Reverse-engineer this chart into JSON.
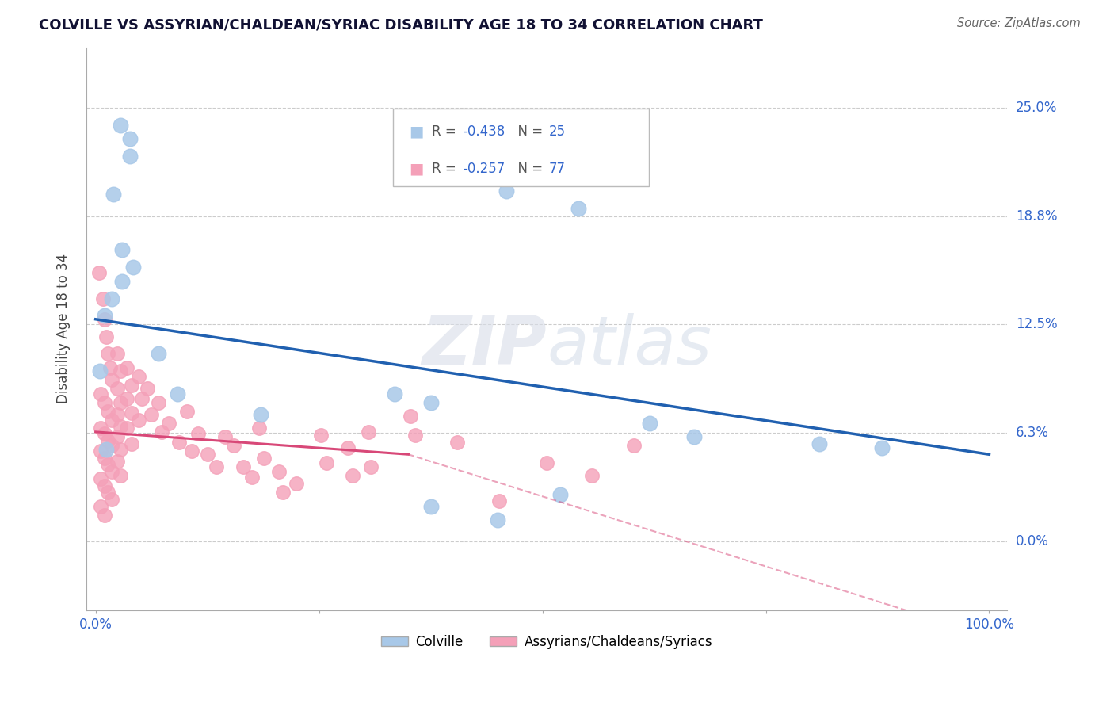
{
  "title": "COLVILLE VS ASSYRIAN/CHALDEAN/SYRIAC DISABILITY AGE 18 TO 34 CORRELATION CHART",
  "source": "Source: ZipAtlas.com",
  "ylabel": "Disability Age 18 to 34",
  "xlim": [
    -0.01,
    1.02
  ],
  "ylim": [
    -0.04,
    0.285
  ],
  "ytick_vals": [
    0.0,
    0.0625,
    0.125,
    0.1875,
    0.25
  ],
  "ytick_labels": [
    "0.0%",
    "6.3%",
    "12.5%",
    "18.8%",
    "25.0%"
  ],
  "xtick_vals": [
    0.0,
    0.25,
    0.5,
    0.75,
    1.0
  ],
  "xtick_labels": [
    "0.0%",
    "",
    "",
    "",
    "100.0%"
  ],
  "blue_R": -0.438,
  "blue_N": 25,
  "pink_R": -0.257,
  "pink_N": 77,
  "legend_label_blue": "Colville",
  "legend_label_pink": "Assyrians/Chaldeans/Syriacs",
  "blue_fill": "#a8c8e8",
  "pink_fill": "#f4a0b8",
  "blue_line": "#2060b0",
  "pink_line": "#d84878",
  "grid_color": "#cccccc",
  "label_color": "#3366cc",
  "watermark_text": "ZIPatlas",
  "blue_line_pts": [
    [
      0.0,
      0.128
    ],
    [
      1.0,
      0.05
    ]
  ],
  "pink_line_solid": [
    [
      0.0,
      0.063
    ],
    [
      0.35,
      0.05
    ]
  ],
  "pink_line_dash": [
    [
      0.35,
      0.05
    ],
    [
      1.0,
      -0.055
    ]
  ],
  "blue_pts": [
    [
      0.028,
      0.24
    ],
    [
      0.038,
      0.232
    ],
    [
      0.038,
      0.222
    ],
    [
      0.02,
      0.2
    ],
    [
      0.03,
      0.168
    ],
    [
      0.042,
      0.158
    ],
    [
      0.03,
      0.15
    ],
    [
      0.018,
      0.14
    ],
    [
      0.01,
      0.13
    ],
    [
      0.46,
      0.202
    ],
    [
      0.54,
      0.192
    ],
    [
      0.07,
      0.108
    ],
    [
      0.005,
      0.098
    ],
    [
      0.092,
      0.085
    ],
    [
      0.185,
      0.073
    ],
    [
      0.335,
      0.085
    ],
    [
      0.375,
      0.08
    ],
    [
      0.62,
      0.068
    ],
    [
      0.67,
      0.06
    ],
    [
      0.81,
      0.056
    ],
    [
      0.88,
      0.054
    ],
    [
      0.012,
      0.053
    ],
    [
      0.375,
      0.02
    ],
    [
      0.52,
      0.027
    ],
    [
      0.45,
      0.012
    ]
  ],
  "pink_pts": [
    [
      0.004,
      0.155
    ],
    [
      0.008,
      0.14
    ],
    [
      0.01,
      0.128
    ],
    [
      0.012,
      0.118
    ],
    [
      0.014,
      0.108
    ],
    [
      0.016,
      0.1
    ],
    [
      0.018,
      0.093
    ],
    [
      0.006,
      0.085
    ],
    [
      0.01,
      0.08
    ],
    [
      0.014,
      0.075
    ],
    [
      0.018,
      0.07
    ],
    [
      0.006,
      0.065
    ],
    [
      0.01,
      0.062
    ],
    [
      0.014,
      0.058
    ],
    [
      0.018,
      0.055
    ],
    [
      0.006,
      0.052
    ],
    [
      0.01,
      0.048
    ],
    [
      0.014,
      0.044
    ],
    [
      0.018,
      0.04
    ],
    [
      0.006,
      0.036
    ],
    [
      0.01,
      0.032
    ],
    [
      0.014,
      0.028
    ],
    [
      0.018,
      0.024
    ],
    [
      0.006,
      0.02
    ],
    [
      0.01,
      0.015
    ],
    [
      0.024,
      0.108
    ],
    [
      0.028,
      0.098
    ],
    [
      0.024,
      0.088
    ],
    [
      0.028,
      0.08
    ],
    [
      0.024,
      0.073
    ],
    [
      0.028,
      0.066
    ],
    [
      0.024,
      0.06
    ],
    [
      0.028,
      0.053
    ],
    [
      0.024,
      0.046
    ],
    [
      0.028,
      0.038
    ],
    [
      0.035,
      0.1
    ],
    [
      0.04,
      0.09
    ],
    [
      0.035,
      0.082
    ],
    [
      0.04,
      0.074
    ],
    [
      0.035,
      0.065
    ],
    [
      0.04,
      0.056
    ],
    [
      0.048,
      0.095
    ],
    [
      0.052,
      0.082
    ],
    [
      0.048,
      0.07
    ],
    [
      0.058,
      0.088
    ],
    [
      0.062,
      0.073
    ],
    [
      0.07,
      0.08
    ],
    [
      0.074,
      0.063
    ],
    [
      0.082,
      0.068
    ],
    [
      0.093,
      0.057
    ],
    [
      0.102,
      0.075
    ],
    [
      0.108,
      0.052
    ],
    [
      0.115,
      0.062
    ],
    [
      0.125,
      0.05
    ],
    [
      0.135,
      0.043
    ],
    [
      0.145,
      0.06
    ],
    [
      0.155,
      0.055
    ],
    [
      0.165,
      0.043
    ],
    [
      0.175,
      0.037
    ],
    [
      0.183,
      0.065
    ],
    [
      0.188,
      0.048
    ],
    [
      0.205,
      0.04
    ],
    [
      0.21,
      0.028
    ],
    [
      0.225,
      0.033
    ],
    [
      0.252,
      0.061
    ],
    [
      0.258,
      0.045
    ],
    [
      0.282,
      0.054
    ],
    [
      0.288,
      0.038
    ],
    [
      0.305,
      0.063
    ],
    [
      0.308,
      0.043
    ],
    [
      0.352,
      0.072
    ],
    [
      0.358,
      0.061
    ],
    [
      0.405,
      0.057
    ],
    [
      0.452,
      0.023
    ],
    [
      0.505,
      0.045
    ],
    [
      0.555,
      0.038
    ],
    [
      0.602,
      0.055
    ]
  ]
}
